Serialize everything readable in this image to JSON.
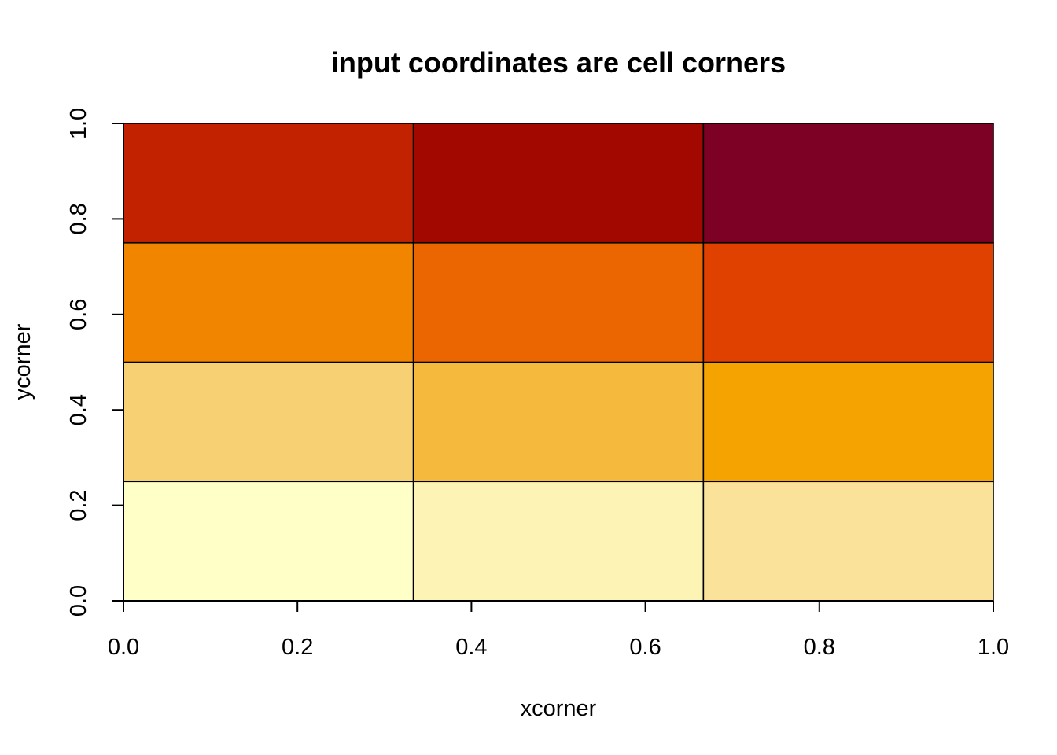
{
  "chart_data": {
    "type": "heatmap",
    "title": "input coordinates are cell corners",
    "xlabel": "xcorner",
    "ylabel": "ycorner",
    "xlim": [
      0,
      1
    ],
    "ylim": [
      0,
      1
    ],
    "x_corners": [
      0,
      0.3333,
      0.6667,
      1.0
    ],
    "y_corners": [
      0,
      0.25,
      0.5,
      0.75,
      1.0
    ],
    "x_ticks": [
      0.0,
      0.2,
      0.4,
      0.6,
      0.8,
      1.0
    ],
    "x_tick_labels": [
      "0.0",
      "0.2",
      "0.4",
      "0.6",
      "0.8",
      "1.0"
    ],
    "y_ticks": [
      0.0,
      0.2,
      0.4,
      0.6,
      0.8,
      1.0
    ],
    "y_tick_labels": [
      "0.0",
      "0.2",
      "0.4",
      "0.6",
      "0.8",
      "1.0"
    ],
    "cell_colors_by_row_bottom_to_top": [
      [
        "#FFFFC8",
        "#FDF3B5",
        "#FAE29B"
      ],
      [
        "#F7D074",
        "#F5B93E",
        "#F4A300"
      ],
      [
        "#F28500",
        "#EB6500",
        "#E04000"
      ],
      [
        "#C32200",
        "#A20800",
        "#7D0025"
      ]
    ],
    "grid": false,
    "legend": "none"
  }
}
